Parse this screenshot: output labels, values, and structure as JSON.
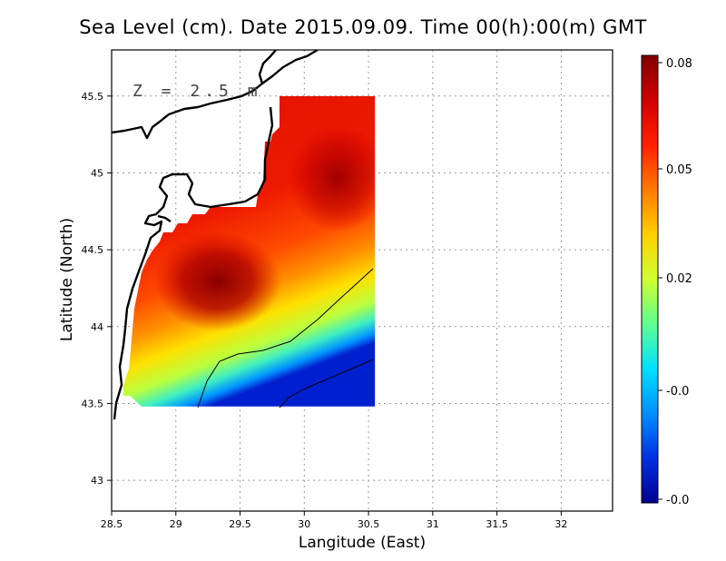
{
  "title": "Sea Level (cm). Date 2015.09.09. Time 00(h):00(m) GMT",
  "xlabel": "Langitude (East)",
  "ylabel": "Latitude (North)",
  "annotation": "Z = 2.5 m",
  "chart_data": {
    "type": "heatmap",
    "xlim": [
      28.5,
      32.4
    ],
    "ylim": [
      42.8,
      45.8
    ],
    "xticks": [
      "28.5",
      "29",
      "29.5",
      "30",
      "30.5",
      "31",
      "31.5",
      "32"
    ],
    "yticks": [
      "43",
      "43.5",
      "44",
      "44.5",
      "45",
      "45.5"
    ],
    "grid": true,
    "data_extent": {
      "lon": [
        28.62,
        30.55
      ],
      "lat": [
        43.48,
        45.5
      ]
    },
    "colorbar": {
      "ticks": [
        "0.08",
        "0.05",
        "0.02",
        "-0.0",
        "-0.0"
      ],
      "colors": [
        "#800000",
        "#d00000",
        "#ff2000",
        "#ff7a00",
        "#ffd000",
        "#d0ff30",
        "#60ff90",
        "#00e0ff",
        "#0090ff",
        "#0030e0",
        "#000090"
      ]
    }
  }
}
